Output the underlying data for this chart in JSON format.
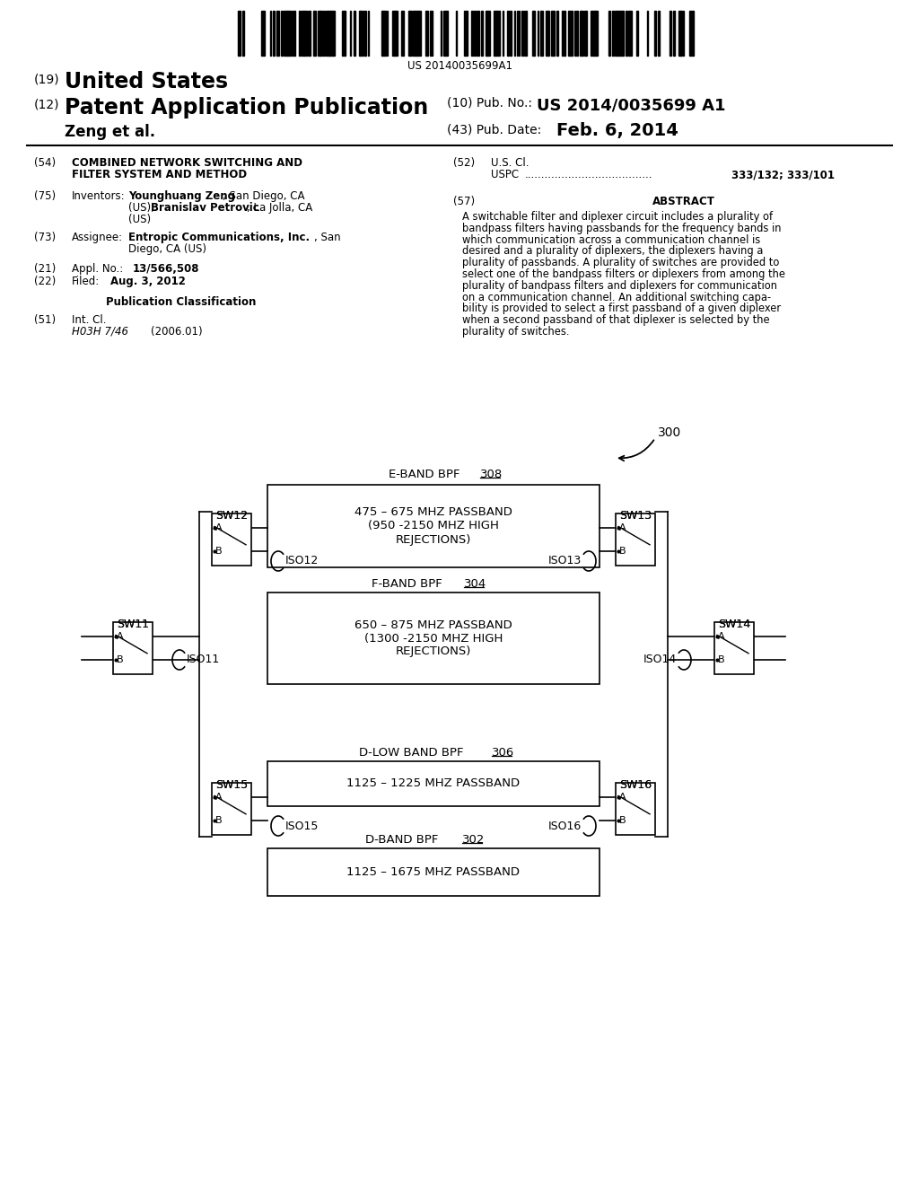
{
  "background_color": "#ffffff",
  "barcode_text": "US 20140035699A1",
  "country": "United States",
  "pub_type": "Patent Application Publication",
  "pub_num_label": "(10) Pub. No.:",
  "pub_num": "US 2014/0035699 A1",
  "authors": "Zeng et al.",
  "pub_date_label": "(43) Pub. Date:",
  "pub_date": "Feb. 6, 2014",
  "abstract_lines": [
    "A switchable filter and diplexer circuit includes a plurality of",
    "bandpass filters having passbands for the frequency bands in",
    "which communication across a communication channel is",
    "desired and a plurality of diplexers, the diplexers having a",
    "plurality of passbands. A plurality of switches are provided to",
    "select one of the bandpass filters or diplexers from among the",
    "plurality of bandpass filters and diplexers for communication",
    "on a communication channel. An additional switching capa-",
    "bility is provided to select a first passband of a given diplexer",
    "when a second passband of that diplexer is selected by the",
    "plurality of switches."
  ]
}
